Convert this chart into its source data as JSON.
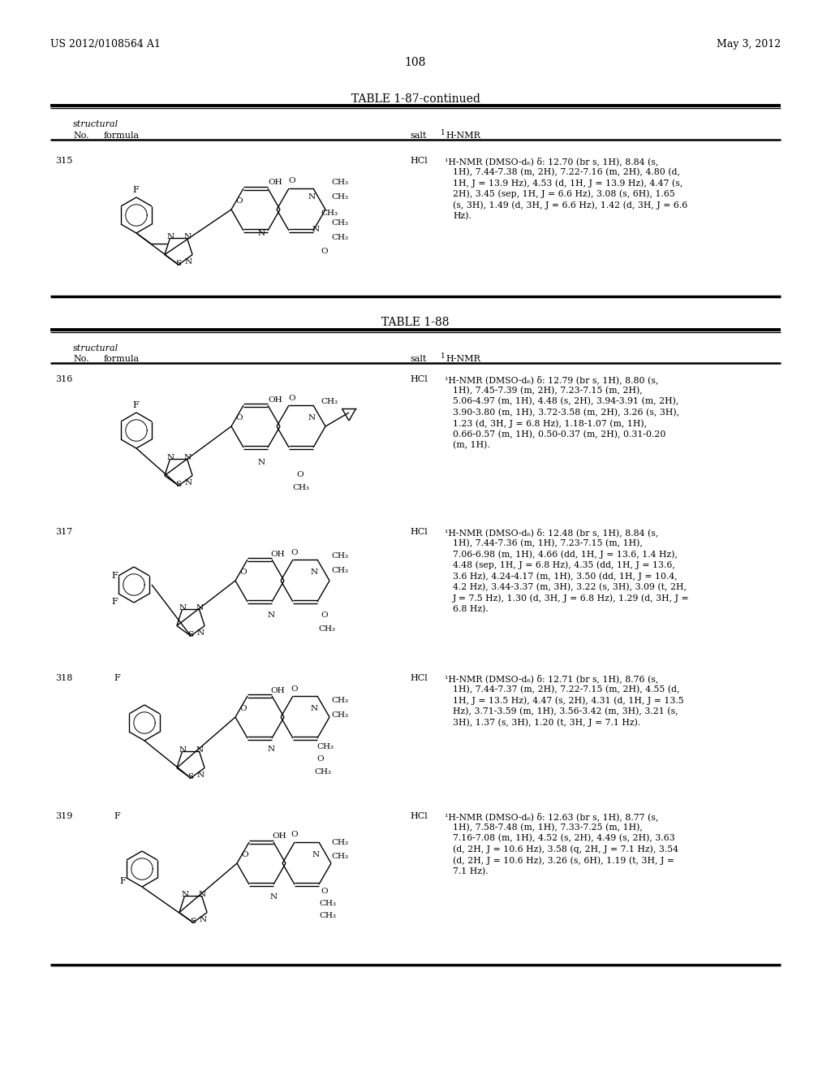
{
  "page_header_left": "US 2012/0108564 A1",
  "page_header_right": "May 3, 2012",
  "page_number": "108",
  "table1_title": "TABLE 1-87-continued",
  "table2_title": "TABLE 1-88",
  "col_structural": "structural",
  "col_no_formula": "No.   formula",
  "col_salt": "salt",
  "col_nmr_super": "1",
  "col_nmr": "H-NMR",
  "bg_color": "#ffffff",
  "entries": [
    {
      "no": "315",
      "salt": "HCl",
      "nmr_lines": [
        "¹H-NMR (DMSO-d₆) δ: 12.70 (br s, 1H), 8.84 (s,",
        "1H), 7.44-7.38 (m, 2H), 7.22-7.16 (m, 2H), 4.80 (d,",
        "1H, J = 13.9 Hz), 4.53 (d, 1H, J = 13.9 Hz), 4.47 (s,",
        "2H), 3.45 (sep, 1H, J = 6.6 Hz), 3.08 (s, 6H), 1.65",
        "(s, 3H), 1.49 (d, 3H, J = 6.6 Hz), 1.42 (d, 3H, J = 6.6",
        "Hz)."
      ],
      "table": 1
    },
    {
      "no": "316",
      "salt": "HCl",
      "nmr_lines": [
        "¹H-NMR (DMSO-d₆) δ: 12.79 (br s, 1H), 8.80 (s,",
        "1H), 7.45-7.39 (m, 2H), 7.23-7.15 (m, 2H),",
        "5.06-4.97 (m, 1H), 4.48 (s, 2H), 3.94-3.91 (m, 2H),",
        "3.90-3.80 (m, 1H), 3.72-3.58 (m, 2H), 3.26 (s, 3H),",
        "1.23 (d, 3H, J = 6.8 Hz), 1.18-1.07 (m, 1H),",
        "0.66-0.57 (m, 1H), 0.50-0.37 (m, 2H), 0.31-0.20",
        "(m, 1H)."
      ],
      "table": 2
    },
    {
      "no": "317",
      "salt": "HCl",
      "nmr_lines": [
        "¹H-NMR (DMSO-d₆) δ: 12.48 (br s, 1H), 8.84 (s,",
        "1H), 7.44-7.36 (m, 1H), 7.23-7.15 (m, 1H),",
        "7.06-6.98 (m, 1H), 4.66 (dd, 1H, J = 13.6, 1.4 Hz),",
        "4.48 (sep, 1H, J = 6.8 Hz), 4.35 (dd, 1H, J = 13.6,",
        "3.6 Hz), 4.24-4.17 (m, 1H), 3.50 (dd, 1H, J = 10.4,",
        "4.2 Hz), 3.44-3.37 (m, 3H), 3.22 (s, 3H), 3.09 (t, 2H,",
        "J = 7.5 Hz), 1.30 (d, 3H, J = 6.8 Hz), 1.29 (d, 3H, J =",
        "6.8 Hz)."
      ],
      "table": 2
    },
    {
      "no": "318",
      "salt": "HCl",
      "nmr_lines": [
        "¹H-NMR (DMSO-d₆) δ: 12.71 (br s, 1H), 8.76 (s,",
        "1H), 7.44-7.37 (m, 2H), 7.22-7.15 (m, 2H), 4.55 (d,",
        "1H, J = 13.5 Hz), 4.47 (s, 2H), 4.31 (d, 1H, J = 13.5",
        "Hz), 3.71-3.59 (m, 1H), 3.56-3.42 (m, 3H), 3.21 (s,",
        "3H), 1.37 (s, 3H), 1.20 (t, 3H, J = 7.1 Hz)."
      ],
      "table": 2
    },
    {
      "no": "319",
      "salt": "HCl",
      "nmr_lines": [
        "¹H-NMR (DMSO-d₆) δ: 12.63 (br s, 1H), 8.77 (s,",
        "1H), 7.58-7.48 (m, 1H), 7.33-7.25 (m, 1H),",
        "7.16-7.08 (m, 1H), 4.52 (s, 2H), 4.49 (s, 2H), 3.63",
        "(d, 2H, J = 10.6 Hz), 3.58 (q, 2H, J = 7.1 Hz), 3.54",
        "(d, 2H, J = 10.6 Hz), 3.26 (s, 6H), 1.19 (t, 3H, J =",
        "7.1 Hz)."
      ],
      "table": 2
    }
  ]
}
